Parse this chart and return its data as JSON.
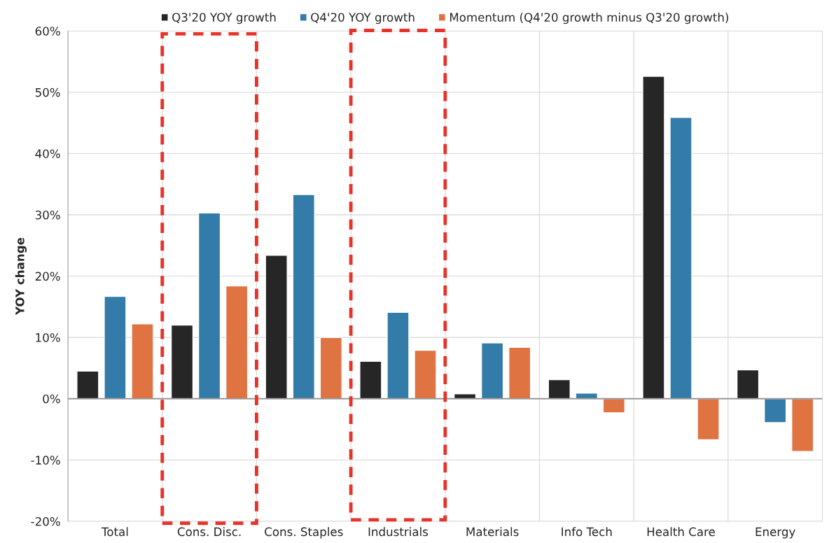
{
  "chart_data": {
    "type": "bar",
    "ylabel": "YOY change",
    "categories": [
      "Total",
      "Cons. Disc.",
      "Cons. Staples",
      "Industrials",
      "Materials",
      "Info Tech",
      "Health Care",
      "Energy"
    ],
    "series": [
      {
        "name": "Q3'20 YOY growth",
        "color": "#262626",
        "values": [
          4.5,
          12.0,
          23.4,
          6.1,
          0.8,
          3.1,
          52.6,
          4.7
        ]
      },
      {
        "name": "Q4'20 YOY growth",
        "color": "#337ba8",
        "values": [
          16.7,
          30.3,
          33.3,
          14.1,
          9.1,
          0.9,
          45.9,
          -3.9
        ]
      },
      {
        "name": "Momentum (Q4'20 growth minus Q3'20 growth)",
        "color": "#e07342",
        "values": [
          12.2,
          18.4,
          10.0,
          7.9,
          8.4,
          -2.3,
          -6.7,
          -8.6
        ]
      }
    ],
    "ylim": [
      -20,
      60
    ],
    "yticks": [
      {
        "value": -20,
        "label": "-20%"
      },
      {
        "value": -10,
        "label": "-10%"
      },
      {
        "value": 0,
        "label": "0%"
      },
      {
        "value": 10,
        "label": "10%"
      },
      {
        "value": 20,
        "label": "20%"
      },
      {
        "value": 30,
        "label": "30%"
      },
      {
        "value": 40,
        "label": "40%"
      },
      {
        "value": 50,
        "label": "50%"
      },
      {
        "value": 60,
        "label": "60%"
      }
    ],
    "grid": true,
    "legend": "top"
  }
}
